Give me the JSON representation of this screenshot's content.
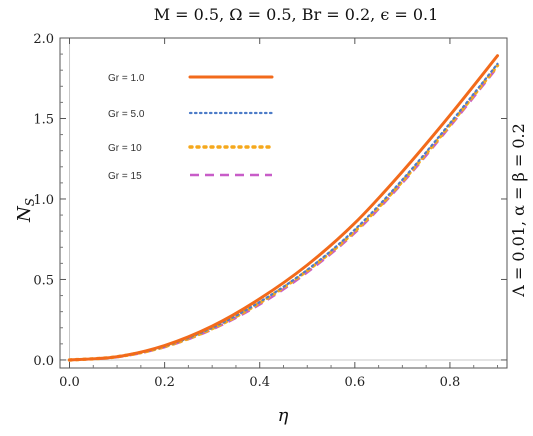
{
  "chart_data": {
    "type": "line",
    "title": "M = 0.5, Ω = 0.5, Br = 0.2, ϵ = 0.1",
    "xlabel": "η",
    "ylabel": "N",
    "ylabel_sub": "S",
    "side_label": "Λ = 0.01, α = β = 0.2",
    "xlim": [
      -0.02,
      0.92
    ],
    "ylim": [
      -0.05,
      2.0
    ],
    "x_ticks": [
      0.0,
      0.2,
      0.4,
      0.6,
      0.8
    ],
    "x_tick_labels": [
      "0.0",
      "0.2",
      "0.4",
      "0.6",
      "0.8"
    ],
    "y_ticks": [
      0.0,
      0.5,
      1.0,
      1.5,
      2.0
    ],
    "y_tick_labels": [
      "0.0",
      "0.5",
      "1.0",
      "1.5",
      "2.0"
    ],
    "grid": false,
    "legend_position": "top-left",
    "x": [
      0.0,
      0.1,
      0.2,
      0.3,
      0.4,
      0.5,
      0.6,
      0.7,
      0.8,
      0.9
    ],
    "series": [
      {
        "name": "Gr = 1.0",
        "color": "#f26a1b",
        "dash": "solid",
        "values": [
          0.0,
          0.02,
          0.09,
          0.21,
          0.38,
          0.59,
          0.85,
          1.17,
          1.52,
          1.89
        ]
      },
      {
        "name": "Gr = 5.0",
        "color": "#4d7cc8",
        "dash": "dotted",
        "values": [
          0.0,
          0.02,
          0.085,
          0.2,
          0.36,
          0.56,
          0.81,
          1.12,
          1.47,
          1.84
        ]
      },
      {
        "name": "Gr = 10",
        "color": "#f5a81c",
        "dash": "dotted-thick",
        "values": [
          0.0,
          0.02,
          0.083,
          0.195,
          0.355,
          0.555,
          0.8,
          1.11,
          1.46,
          1.83
        ]
      },
      {
        "name": "Gr = 15",
        "color": "#c85cc8",
        "dash": "dashed",
        "values": [
          0.0,
          0.018,
          0.08,
          0.19,
          0.345,
          0.545,
          0.79,
          1.1,
          1.45,
          1.82
        ]
      }
    ]
  }
}
